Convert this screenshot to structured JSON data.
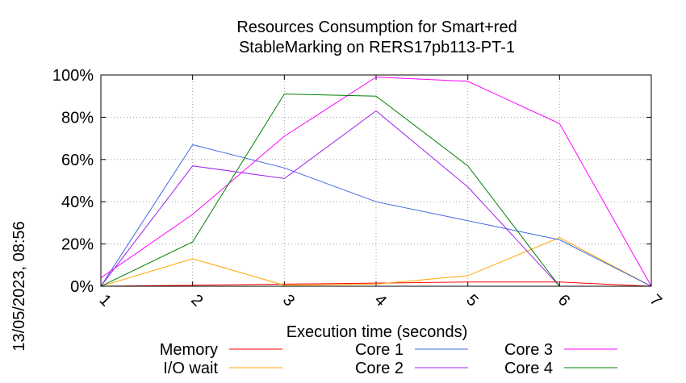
{
  "chart_data": {
    "type": "line",
    "title_line1": "Resources Consumption for Smart+red",
    "title_line2": "StableMarking on RERS17pb113-PT-1",
    "xlabel": "Execution time (seconds)",
    "ylabel": "",
    "side_label": "13/05/2023, 08:56",
    "x": [
      1,
      2,
      3,
      4,
      5,
      6,
      7
    ],
    "x_ticks": [
      "1",
      "2",
      "3",
      "4",
      "5",
      "6",
      "7"
    ],
    "xlim": [
      1,
      7
    ],
    "ylim": [
      0,
      100
    ],
    "y_ticks": [
      "0%",
      "20%",
      "40%",
      "60%",
      "80%",
      "100%"
    ],
    "grid": true,
    "legend_position": "bottom",
    "series": [
      {
        "name": "Memory",
        "color": "#ff0000",
        "values": [
          0,
          0.5,
          1,
          1.5,
          2,
          2,
          0
        ]
      },
      {
        "name": "I/O wait",
        "color": "#ffa500",
        "values": [
          0,
          13,
          0.5,
          1,
          5,
          23,
          0
        ]
      },
      {
        "name": "Core 1",
        "color": "#4169e1",
        "values": [
          0,
          67,
          56,
          40,
          31,
          22,
          0
        ]
      },
      {
        "name": "Core 2",
        "color": "#a020f0",
        "values": [
          0,
          57,
          51,
          83,
          47,
          0,
          0
        ]
      },
      {
        "name": "Core 3",
        "color": "#ff00ff",
        "values": [
          4,
          34,
          71,
          99,
          97,
          77,
          0
        ]
      },
      {
        "name": "Core 4",
        "color": "#008000",
        "values": [
          0,
          21,
          91,
          90,
          57,
          0,
          0
        ]
      }
    ]
  }
}
